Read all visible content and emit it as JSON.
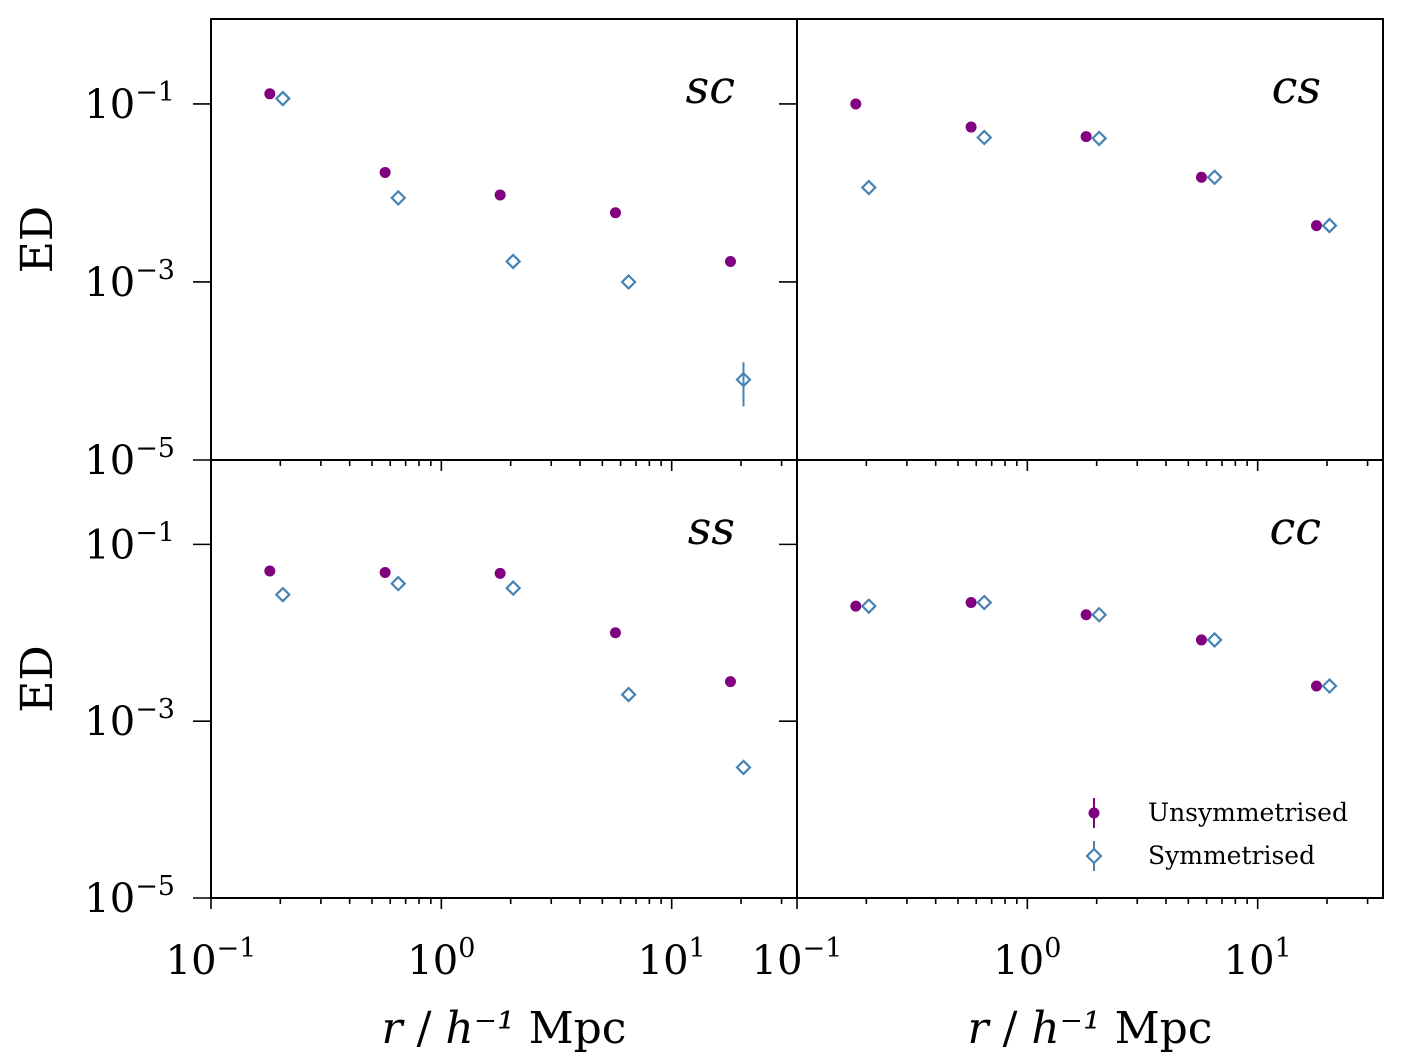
{
  "chart_data": {
    "type": "scatter",
    "layout": "2x2 grid, shared axes",
    "xscale": "log",
    "yscale": "log",
    "xlim": [
      0.1,
      35
    ],
    "ylim": [
      1e-05,
      0.9
    ],
    "xlabel": "r / h⁻¹ Mpc",
    "ylabel": "ED",
    "x_ticks": [
      {
        "value": 0.1,
        "base": "10",
        "exp": "−1"
      },
      {
        "value": 1,
        "base": "10",
        "exp": "0"
      },
      {
        "value": 10,
        "base": "10",
        "exp": "1"
      }
    ],
    "y_ticks": [
      {
        "value": 0.1,
        "base": "10",
        "exp": "−1"
      },
      {
        "value": 0.001,
        "base": "10",
        "exp": "−3"
      },
      {
        "value": 1e-05,
        "base": "10",
        "exp": "−5"
      }
    ],
    "legend": {
      "location": "lower-right of bottom-right panel",
      "entries": [
        {
          "name": "Unsymmetrised",
          "marker": "filled-circle",
          "color": "#800080"
        },
        {
          "name": "Symmetrised",
          "marker": "open-diamond",
          "color": "#4682b4"
        }
      ]
    },
    "panels": [
      {
        "label": "sc",
        "position": "top-left",
        "series": [
          {
            "name": "Unsymmetrised",
            "x": [
              0.18,
              0.57,
              1.8,
              5.7,
              18
            ],
            "y": [
              0.13,
              0.017,
              0.0095,
              0.006,
              0.0017
            ]
          },
          {
            "name": "Symmetrised",
            "x": [
              0.205,
              0.65,
              2.05,
              6.5,
              20.5
            ],
            "y": [
              0.115,
              0.0088,
              0.0017,
              0.001,
              8e-05
            ],
            "yerr": [
              [
                0,
                0,
                0,
                0,
                4e-05
              ],
              [
                0,
                0,
                0,
                0,
                4.5e-05
              ]
            ]
          }
        ]
      },
      {
        "label": "cs",
        "position": "top-right",
        "series": [
          {
            "name": "Unsymmetrised",
            "x": [
              0.18,
              0.57,
              1.8,
              5.7,
              18
            ],
            "y": [
              0.1,
              0.055,
              0.043,
              0.015,
              0.0043
            ]
          },
          {
            "name": "Symmetrised",
            "x": [
              0.205,
              0.65,
              2.05,
              6.5,
              20.5
            ],
            "y": [
              0.0115,
              0.042,
              0.041,
              0.015,
              0.0043
            ]
          }
        ]
      },
      {
        "label": "ss",
        "position": "bottom-left",
        "series": [
          {
            "name": "Unsymmetrised",
            "x": [
              0.18,
              0.57,
              1.8,
              5.7,
              18
            ],
            "y": [
              0.05,
              0.048,
              0.047,
              0.01,
              0.0028
            ]
          },
          {
            "name": "Symmetrised",
            "x": [
              0.205,
              0.65,
              2.05,
              6.5,
              20.5
            ],
            "y": [
              0.027,
              0.036,
              0.032,
              0.002,
              0.0003
            ]
          }
        ]
      },
      {
        "label": "cc",
        "position": "bottom-right",
        "series": [
          {
            "name": "Unsymmetrised",
            "x": [
              0.18,
              0.57,
              1.8,
              5.7,
              18
            ],
            "y": [
              0.02,
              0.022,
              0.016,
              0.0083,
              0.0025
            ]
          },
          {
            "name": "Symmetrised",
            "x": [
              0.205,
              0.65,
              2.05,
              6.5,
              20.5
            ],
            "y": [
              0.02,
              0.022,
              0.016,
              0.0083,
              0.0025
            ]
          }
        ]
      }
    ]
  }
}
